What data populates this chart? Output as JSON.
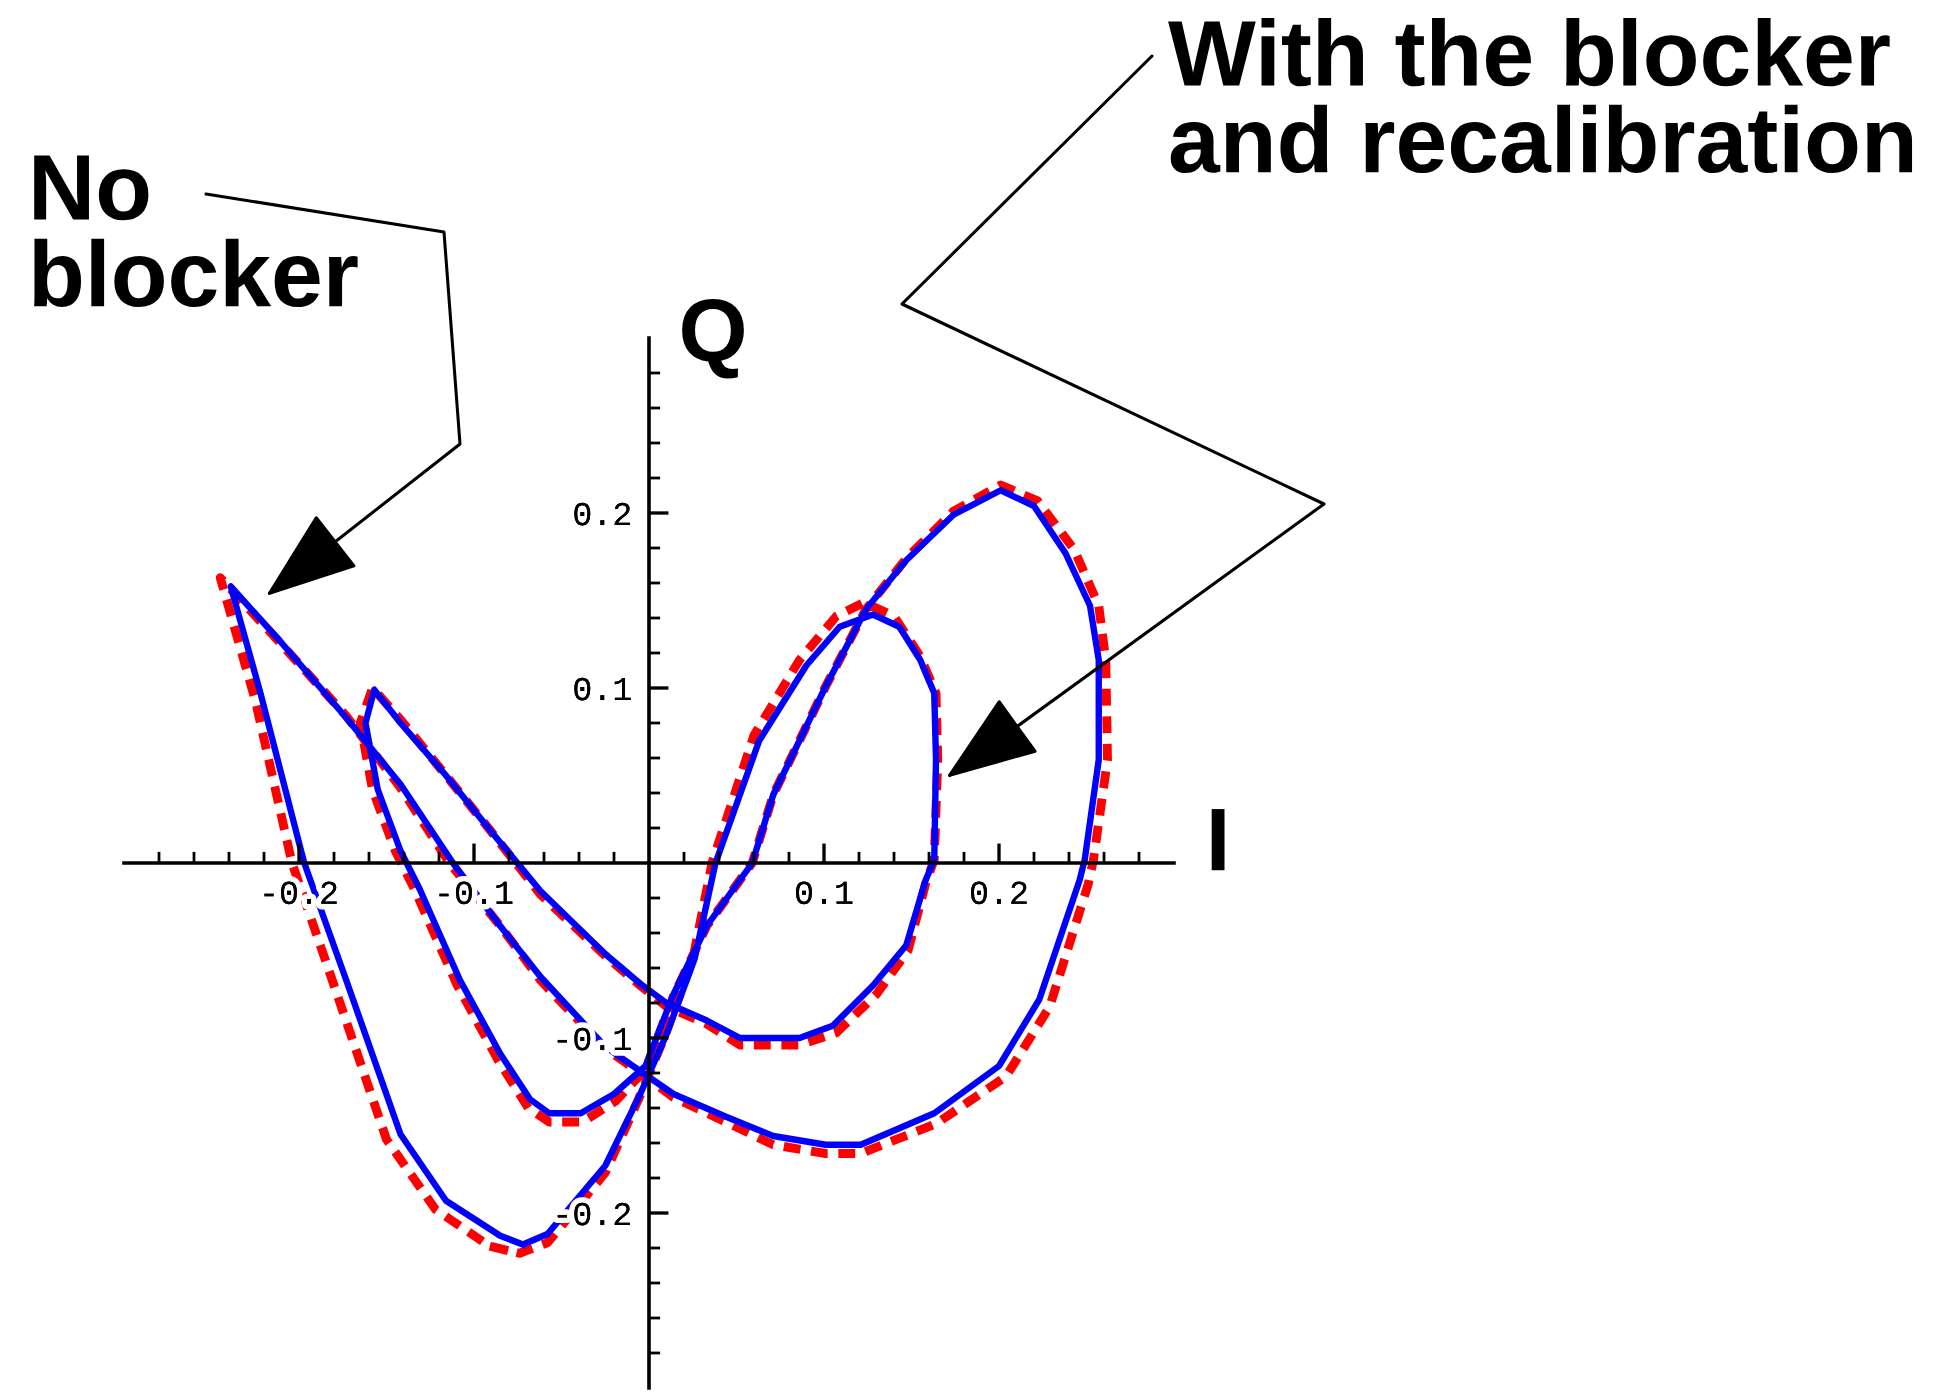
{
  "chart_data": {
    "type": "line",
    "xlabel": "I",
    "ylabel": "Q",
    "xlim": [
      -0.3,
      0.3
    ],
    "ylim": [
      -0.3,
      0.3
    ],
    "xticks": [
      {
        "value": -0.28,
        "label": null
      },
      {
        "value": -0.26,
        "label": null
      },
      {
        "value": -0.24,
        "label": null
      },
      {
        "value": -0.22,
        "label": null
      },
      -0.2,
      {
        "value": -0.18,
        "label": null
      },
      {
        "value": -0.16,
        "label": null
      },
      {
        "value": -0.14,
        "label": null
      },
      {
        "value": -0.12,
        "label": null
      },
      -0.1,
      {
        "value": -0.08,
        "label": null
      },
      {
        "value": -0.06,
        "label": null
      },
      {
        "value": -0.04,
        "label": null
      },
      {
        "value": -0.02,
        "label": null
      },
      {
        "value": 0.02,
        "label": null
      },
      {
        "value": 0.04,
        "label": null
      },
      {
        "value": 0.06,
        "label": null
      },
      {
        "value": 0.08,
        "label": null
      },
      0.1,
      {
        "value": 0.12,
        "label": null
      },
      {
        "value": 0.14,
        "label": null
      },
      {
        "value": 0.16,
        "label": null
      },
      {
        "value": 0.18,
        "label": null
      },
      0.2,
      {
        "value": 0.22,
        "label": null
      },
      {
        "value": 0.24,
        "label": null
      },
      {
        "value": 0.26,
        "label": null
      },
      {
        "value": 0.28,
        "label": null
      }
    ],
    "yticks": [
      {
        "value": -0.28,
        "label": null
      },
      {
        "value": -0.26,
        "label": null
      },
      {
        "value": -0.24,
        "label": null
      },
      {
        "value": -0.22,
        "label": null
      },
      -0.2,
      {
        "value": -0.18,
        "label": null
      },
      {
        "value": -0.16,
        "label": null
      },
      {
        "value": -0.14,
        "label": null
      },
      {
        "value": -0.12,
        "label": null
      },
      -0.1,
      {
        "value": -0.08,
        "label": null
      },
      {
        "value": -0.06,
        "label": null
      },
      {
        "value": -0.04,
        "label": null
      },
      {
        "value": -0.02,
        "label": null
      },
      {
        "value": 0.02,
        "label": null
      },
      {
        "value": 0.04,
        "label": null
      },
      {
        "value": 0.06,
        "label": null
      },
      {
        "value": 0.08,
        "label": null
      },
      0.1,
      {
        "value": 0.12,
        "label": null
      },
      {
        "value": 0.14,
        "label": null
      },
      {
        "value": 0.16,
        "label": null
      },
      {
        "value": 0.18,
        "label": null
      },
      0.2,
      {
        "value": 0.22,
        "label": null
      },
      {
        "value": 0.24,
        "label": null
      },
      {
        "value": 0.26,
        "label": null
      },
      {
        "value": 0.28,
        "label": null
      }
    ],
    "series": [
      {
        "color": "#ff0000",
        "line_style": "dashed",
        "x": [
          -0.091,
          -0.074,
          -0.058,
          -0.025,
          -0.006,
          0.009,
          0.025,
          0.036,
          0.06,
          0.086,
          0.107,
          0.123,
          0.14,
          0.155,
          0.164,
          0.165,
          0.163,
          0.158,
          0.148,
          0.13,
          0.107,
          0.086,
          0.052,
          0.033,
          0.01,
          -0.005,
          -0.025,
          -0.062,
          -0.091,
          -0.116,
          -0.142,
          -0.158,
          -0.165,
          -0.158,
          -0.145,
          -0.134,
          -0.11,
          -0.086,
          -0.069,
          -0.057,
          -0.038,
          -0.019,
          -0.002,
          0.014,
          0.033,
          0.059,
          0.071,
          0.101,
          0.124,
          0.147,
          0.174,
          0.201,
          0.222,
          0.243,
          0.257,
          0.261,
          0.262,
          0.254,
          0.251,
          0.229,
          0.204,
          0.164,
          0.121,
          0.101,
          0.071,
          0.044,
          0.014,
          -0.002,
          -0.025,
          -0.062,
          -0.085,
          -0.114,
          -0.142,
          -0.173,
          -0.211,
          -0.245,
          -0.225,
          -0.204,
          -0.181,
          -0.15,
          -0.122,
          -0.091,
          -0.074
        ],
        "values": [
          -0.219,
          -0.223,
          -0.217,
          -0.177,
          -0.135,
          -0.099,
          -0.055,
          0.0,
          0.073,
          0.116,
          0.141,
          0.149,
          0.141,
          0.118,
          0.097,
          0.059,
          0.002,
          -0.012,
          -0.05,
          -0.075,
          -0.097,
          -0.104,
          -0.104,
          -0.092,
          -0.082,
          -0.07,
          -0.053,
          -0.018,
          0.019,
          0.05,
          0.082,
          0.1,
          0.08,
          0.042,
          0.007,
          -0.015,
          -0.069,
          -0.113,
          -0.14,
          -0.148,
          -0.148,
          -0.136,
          -0.118,
          -0.076,
          -0.036,
          0.0,
          0.039,
          0.101,
          0.145,
          0.174,
          0.201,
          0.216,
          0.207,
          0.179,
          0.147,
          0.116,
          0.059,
          0.002,
          -0.012,
          -0.082,
          -0.122,
          -0.149,
          -0.166,
          -0.166,
          -0.161,
          -0.148,
          -0.134,
          -0.122,
          -0.106,
          -0.067,
          -0.036,
          0.0,
          0.043,
          0.084,
          0.126,
          0.163,
          0.093,
          0.0,
          -0.067,
          -0.158,
          -0.198,
          -0.219,
          -0.223
        ]
      },
      {
        "color": "#0000ff",
        "line_style": "solid",
        "x": [
          -0.085,
          -0.072,
          -0.058,
          -0.025,
          -0.005,
          0.01,
          0.026,
          0.038,
          0.063,
          0.09,
          0.109,
          0.128,
          0.143,
          0.155,
          0.163,
          0.164,
          0.163,
          0.158,
          0.147,
          0.128,
          0.105,
          0.086,
          0.052,
          0.033,
          0.01,
          -0.005,
          -0.025,
          -0.062,
          -0.091,
          -0.116,
          -0.142,
          -0.157,
          -0.162,
          -0.155,
          -0.142,
          -0.131,
          -0.108,
          -0.085,
          -0.068,
          -0.057,
          -0.039,
          -0.02,
          -0.002,
          0.014,
          0.033,
          0.059,
          0.071,
          0.101,
          0.124,
          0.147,
          0.174,
          0.201,
          0.22,
          0.238,
          0.252,
          0.257,
          0.257,
          0.249,
          0.246,
          0.223,
          0.2,
          0.163,
          0.121,
          0.101,
          0.071,
          0.044,
          0.014,
          -0.002,
          -0.025,
          -0.062,
          -0.085,
          -0.112,
          -0.142,
          -0.173,
          -0.211,
          -0.239,
          -0.222,
          -0.197,
          -0.173,
          -0.142,
          -0.116,
          -0.085,
          -0.072
        ],
        "values": [
          -0.213,
          -0.218,
          -0.212,
          -0.173,
          -0.132,
          -0.098,
          -0.055,
          0.0,
          0.07,
          0.113,
          0.135,
          0.142,
          0.135,
          0.116,
          0.097,
          0.059,
          0.002,
          -0.01,
          -0.047,
          -0.07,
          -0.093,
          -0.1,
          -0.1,
          -0.09,
          -0.08,
          -0.069,
          -0.052,
          -0.016,
          0.019,
          0.05,
          0.08,
          0.099,
          0.08,
          0.042,
          0.007,
          -0.015,
          -0.067,
          -0.109,
          -0.135,
          -0.143,
          -0.143,
          -0.132,
          -0.116,
          -0.075,
          -0.036,
          0.0,
          0.039,
          0.101,
          0.145,
          0.173,
          0.199,
          0.213,
          0.204,
          0.177,
          0.147,
          0.116,
          0.059,
          0.002,
          -0.01,
          -0.078,
          -0.116,
          -0.143,
          -0.161,
          -0.161,
          -0.156,
          -0.145,
          -0.132,
          -0.121,
          -0.105,
          -0.065,
          -0.036,
          0.0,
          0.045,
          0.083,
          0.127,
          0.158,
          0.097,
          0.0,
          -0.067,
          -0.155,
          -0.193,
          -0.213,
          -0.218
        ]
      }
    ],
    "annotations": [
      "No\nblocker",
      "With the blocker\nand recalibration"
    ]
  }
}
